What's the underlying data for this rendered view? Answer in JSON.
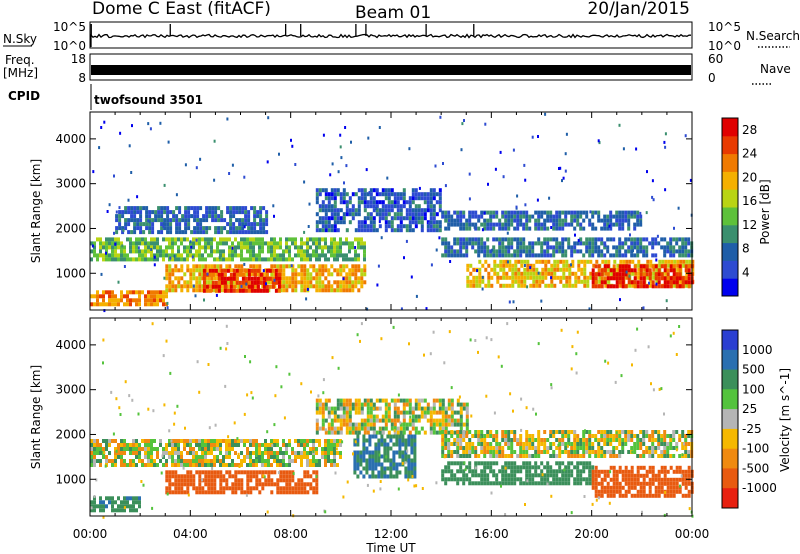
{
  "header": {
    "station": "Dome C East (fitACF)",
    "beam": "Beam 01",
    "date": "20/Jan/2015"
  },
  "strips": {
    "nsky": {
      "label": "N.Sky",
      "ticks": [
        "10^5",
        "10^0"
      ],
      "right_label": "N.Search",
      "right_ticks": [
        "10^5",
        "10^0"
      ]
    },
    "freq": {
      "label": "Freq.",
      "unit": "[MHz]",
      "ticks": [
        "18",
        "8"
      ],
      "right_label": "Nave",
      "right_ticks": [
        "60",
        "0"
      ]
    },
    "cpid": {
      "label": "CPID",
      "program": "twofsound 3501"
    }
  },
  "colors": {
    "power": [
      "#0000ee",
      "#2d4bd1",
      "#1f5ea8",
      "#3a8f6e",
      "#5ec13a",
      "#b9d414",
      "#f5b000",
      "#f07a00",
      "#e83a00",
      "#e00000"
    ],
    "velocity": [
      "#2b3fd1",
      "#2a6fb0",
      "#3b8f5a",
      "#54c33c",
      "#b5b5b5",
      "#f5b800",
      "#f08a10",
      "#e85a10",
      "#e82010"
    ]
  },
  "chart_data": [
    {
      "type": "heatmap",
      "title": "Power",
      "ylabel": "Slant Range [km]",
      "xlabel": "",
      "xlim": [
        "00:00",
        "24:00"
      ],
      "ylim": [
        180,
        4600
      ],
      "xticks": [
        "00:00",
        "04:00",
        "08:00",
        "12:00",
        "16:00",
        "20:00",
        "00:00"
      ],
      "yticks": [
        1000,
        2000,
        3000,
        4000
      ],
      "colorbar": {
        "label": "Power [dB]",
        "ticks": [
          4,
          8,
          12,
          16,
          20,
          24,
          28
        ],
        "range": [
          0,
          30
        ]
      },
      "bands": [
        {
          "t0": 0.0,
          "t1": 3.0,
          "r0": 280,
          "r1": 620,
          "value": 22
        },
        {
          "t0": 0.0,
          "t1": 11.0,
          "r0": 1300,
          "r1": 1800,
          "value": 13
        },
        {
          "t0": 3.0,
          "t1": 11.0,
          "r0": 600,
          "r1": 1200,
          "value": 20
        },
        {
          "t0": 4.5,
          "t1": 7.5,
          "r0": 650,
          "r1": 1100,
          "value": 26
        },
        {
          "t0": 1.0,
          "t1": 7.0,
          "r0": 1900,
          "r1": 2500,
          "value": 7
        },
        {
          "t0": 9.0,
          "t1": 14.0,
          "r0": 2000,
          "r1": 2900,
          "value": 6
        },
        {
          "t0": 14.0,
          "t1": 24.0,
          "r0": 1400,
          "r1": 1800,
          "value": 8
        },
        {
          "t0": 15.0,
          "t1": 24.0,
          "r0": 700,
          "r1": 1300,
          "value": 19
        },
        {
          "t0": 20.0,
          "t1": 24.0,
          "r0": 700,
          "r1": 1200,
          "value": 27
        },
        {
          "t0": 14.0,
          "t1": 22.0,
          "r0": 2000,
          "r1": 2400,
          "value": 7
        }
      ]
    },
    {
      "type": "heatmap",
      "title": "Velocity",
      "ylabel": "Slant Range [km]",
      "xlabel": "Time UT",
      "xlim": [
        "00:00",
        "24:00"
      ],
      "ylim": [
        180,
        4600
      ],
      "xticks": [
        "00:00",
        "04:00",
        "08:00",
        "12:00",
        "16:00",
        "20:00",
        "00:00"
      ],
      "yticks": [
        1000,
        2000,
        3000,
        4000
      ],
      "colorbar": {
        "label": "Velocity [m s^-1]",
        "ticks": [
          1000,
          500,
          100,
          25,
          -25,
          -100,
          -500,
          -1000
        ]
      },
      "bands": [
        {
          "t0": 0.0,
          "t1": 2.0,
          "r0": 280,
          "r1": 620,
          "value": 250
        },
        {
          "t0": 0.0,
          "t1": 10.0,
          "r0": 1300,
          "r1": 1900,
          "value": 0
        },
        {
          "t0": 3.0,
          "t1": 9.0,
          "r0": 700,
          "r1": 1200,
          "value": -400
        },
        {
          "t0": 9.0,
          "t1": 15.0,
          "r0": 2000,
          "r1": 2800,
          "value": 0
        },
        {
          "t0": 10.5,
          "t1": 13.0,
          "r0": 1100,
          "r1": 2000,
          "value": 300
        },
        {
          "t0": 14.0,
          "t1": 20.0,
          "r0": 900,
          "r1": 1400,
          "value": 200
        },
        {
          "t0": 14.0,
          "t1": 24.0,
          "r0": 1500,
          "r1": 2100,
          "value": 0
        },
        {
          "t0": 20.0,
          "t1": 24.0,
          "r0": 600,
          "r1": 1300,
          "value": -600
        }
      ]
    }
  ]
}
